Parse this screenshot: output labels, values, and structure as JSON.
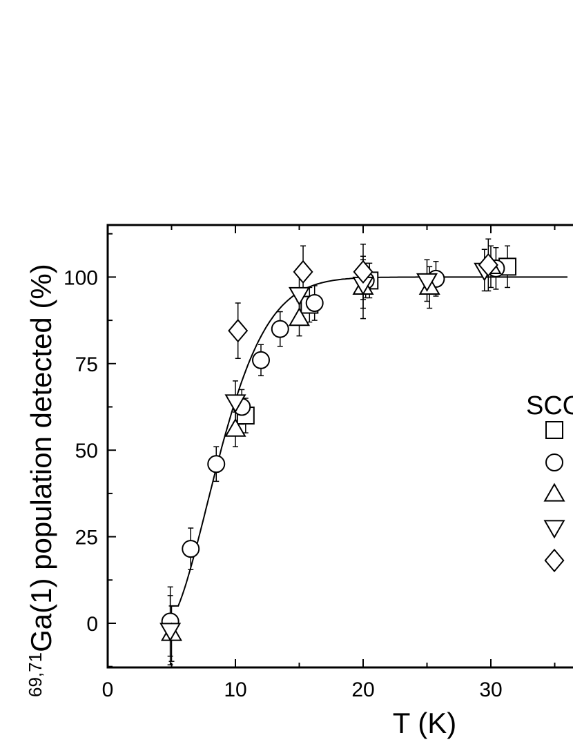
{
  "chart_data": {
    "type": "scatter",
    "xlabel": "T (K)",
    "ylabel_sup": "69,71",
    "ylabel_main": "Ga(1) population detected (%)",
    "xlim": [
      0,
      36
    ],
    "ylim": [
      -13,
      115
    ],
    "x_ticks": [
      0,
      10,
      20,
      30
    ],
    "y_ticks": [
      0,
      25,
      50,
      75,
      100
    ],
    "legend_title_visible": "SCO",
    "legend_placement": "right",
    "series": [
      {
        "marker": "square",
        "points": [
          {
            "x": 10.8,
            "y": 60,
            "err": 5
          },
          {
            "x": 15.8,
            "y": 92,
            "err": 5
          },
          {
            "x": 20.5,
            "y": 99,
            "err": 5
          },
          {
            "x": 31.3,
            "y": 103,
            "err": 6
          }
        ]
      },
      {
        "marker": "circle",
        "points": [
          {
            "x": 4.9,
            "y": 0.5,
            "err": 10
          },
          {
            "x": 6.5,
            "y": 21.5,
            "err": 6
          },
          {
            "x": 8.5,
            "y": 46,
            "err": 5
          },
          {
            "x": 10.5,
            "y": 62.5,
            "err": 5
          },
          {
            "x": 12,
            "y": 76,
            "err": 4.5
          },
          {
            "x": 13.5,
            "y": 85,
            "err": 5
          },
          {
            "x": 16.2,
            "y": 92.5,
            "err": 5
          },
          {
            "x": 20.2,
            "y": 99,
            "err": 5
          },
          {
            "x": 25.7,
            "y": 99.5,
            "err": 5
          },
          {
            "x": 30.4,
            "y": 102.5,
            "err": 6
          }
        ]
      },
      {
        "marker": "triangle-up",
        "points": [
          {
            "x": 5,
            "y": -3,
            "err": 8
          },
          {
            "x": 10,
            "y": 56,
            "err": 5
          },
          {
            "x": 15,
            "y": 88,
            "err": 5
          },
          {
            "x": 20,
            "y": 97,
            "err": 9
          },
          {
            "x": 25.2,
            "y": 97,
            "err": 6
          },
          {
            "x": 30,
            "y": 103,
            "err": 6
          }
        ]
      },
      {
        "marker": "triangle-down",
        "points": [
          {
            "x": 4.9,
            "y": -2,
            "err": 10
          },
          {
            "x": 10,
            "y": 64,
            "err": 6
          },
          {
            "x": 15,
            "y": 95,
            "err": 6
          },
          {
            "x": 20,
            "y": 98,
            "err": 7
          },
          {
            "x": 25,
            "y": 99,
            "err": 6
          },
          {
            "x": 29.5,
            "y": 102,
            "err": 6
          }
        ]
      },
      {
        "marker": "diamond",
        "points": [
          {
            "x": 10.2,
            "y": 84.5,
            "err": 8
          },
          {
            "x": 15.3,
            "y": 101.5,
            "err": 7.5
          },
          {
            "x": 20,
            "y": 101.5,
            "err": 8
          },
          {
            "x": 29.8,
            "y": 103.5,
            "err": 7.5
          }
        ]
      }
    ],
    "fit_curve": {
      "type": "line",
      "x_start": 4.9,
      "x_end": 36,
      "y_plateau": 100
    }
  }
}
